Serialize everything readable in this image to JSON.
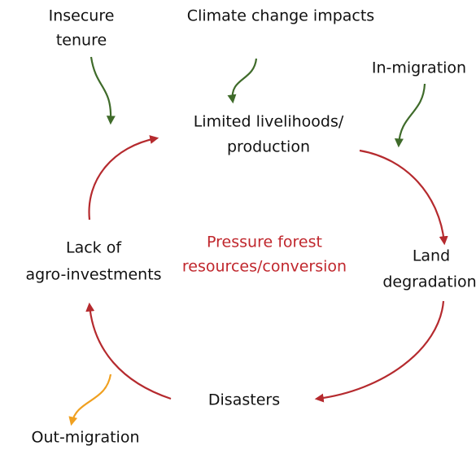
{
  "nodes": [
    {
      "lines": [
        "Insecure",
        "tenure"
      ]
    },
    {
      "lines": [
        "Climate change impacts"
      ]
    },
    {
      "lines": [
        "In-migration"
      ]
    },
    {
      "lines": [
        "Limited livelihoods/",
        "production"
      ]
    },
    {
      "lines": [
        "Pressure forest",
        "resources/conversion"
      ]
    },
    {
      "lines": [
        "Lack of",
        "agro-investments"
      ]
    },
    {
      "lines": [
        "Land",
        "degradation"
      ]
    },
    {
      "lines": [
        "Disasters"
      ]
    },
    {
      "lines": [
        "Out-migration"
      ]
    }
  ]
}
